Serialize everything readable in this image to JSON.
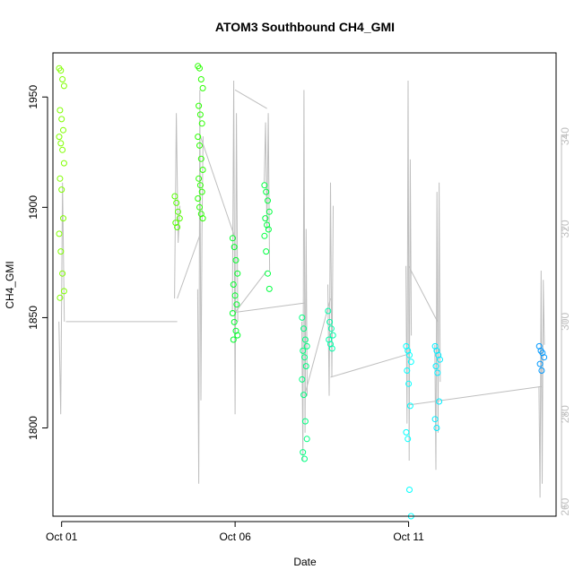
{
  "chart_data": {
    "type": "scatter",
    "title": "ATOM3 Southbound CH4_GMI",
    "xlabel": "Date",
    "ylabel": "CH4_GMI",
    "x_axis": {
      "type": "date",
      "range": [
        "2017-09-30T18:00",
        "2017-10-15T06:00"
      ],
      "ticks": [
        {
          "value": "2017-10-01",
          "label": "Oct 01"
        },
        {
          "value": "2017-10-06",
          "label": "Oct 06"
        },
        {
          "value": "2017-10-11",
          "label": "Oct 11"
        }
      ]
    },
    "y_left": {
      "range": [
        1760,
        1970
      ],
      "ticks": [
        1800,
        1850,
        1900,
        1950
      ]
    },
    "y_right": {
      "range": [
        258,
        358
      ],
      "ticks": [
        260,
        280,
        300,
        320,
        340
      ],
      "color": "#bebebe"
    },
    "colors": {
      "early": "#7fff00",
      "mid": "#00ff40",
      "late": "#00ffff",
      "latest": "#0099ff",
      "line": "#bebebe",
      "frame": "#000000"
    },
    "series": [
      {
        "axis": "left",
        "marker": "open-circle",
        "clusters": [
          {
            "x": "2017-10-01T00:00",
            "color": "#80ff00",
            "y": [
              1963,
              1962,
              1958,
              1955,
              1944,
              1940,
              1935,
              1932,
              1929,
              1926,
              1920,
              1913,
              1908,
              1895,
              1888,
              1880,
              1870,
              1862,
              1859
            ]
          },
          {
            "x": "2017-10-04T08:00",
            "color": "#55ff00",
            "y": [
              1905,
              1902,
              1898,
              1895,
              1893,
              1891
            ]
          },
          {
            "x": "2017-10-05T00:00",
            "color": "#2aff00",
            "y": [
              1964,
              1963,
              1958,
              1954,
              1946,
              1942,
              1938,
              1932,
              1928,
              1922,
              1917,
              1913,
              1910,
              1907,
              1904,
              1900,
              1897,
              1895
            ]
          },
          {
            "x": "2017-10-06T00:00",
            "color": "#00ff2a",
            "y": [
              1886,
              1882,
              1876,
              1870,
              1865,
              1860,
              1856,
              1852,
              1848,
              1844,
              1842,
              1840
            ]
          },
          {
            "x": "2017-10-06T22:00",
            "color": "#00ff40",
            "y": [
              1910,
              1907,
              1903,
              1898,
              1895,
              1892,
              1890,
              1887,
              1880,
              1870,
              1863
            ]
          },
          {
            "x": "2017-10-08T00:00",
            "color": "#00ff80",
            "y": [
              1850,
              1845,
              1840,
              1837,
              1835,
              1832,
              1828,
              1822,
              1815,
              1803,
              1795,
              1789,
              1786
            ]
          },
          {
            "x": "2017-10-08T18:00",
            "color": "#00ffaa",
            "y": [
              1853,
              1848,
              1845,
              1842,
              1840,
              1838,
              1836
            ]
          },
          {
            "x": "2017-10-11T00:00",
            "color": "#00ffff",
            "y": [
              1837,
              1835,
              1833,
              1830,
              1826,
              1820,
              1810,
              1798,
              1795,
              1772,
              1760
            ]
          },
          {
            "x": "2017-10-11T20:00",
            "color": "#00eeff",
            "y": [
              1837,
              1835,
              1833,
              1831,
              1828,
              1825,
              1812,
              1804,
              1800
            ]
          },
          {
            "x": "2017-10-14T20:00",
            "color": "#0099ff",
            "y": [
              1837,
              1835,
              1834,
              1832,
              1829,
              1826
            ]
          }
        ]
      },
      {
        "axis": "right",
        "marker": "line",
        "color": "#bebebe",
        "segments": [
          {
            "x": "2017-10-01T00:00",
            "y": [
              300,
              280,
              330,
              300
            ]
          },
          {
            "x": "2017-10-04T08:00",
            "y": [
              305,
              345,
              317,
              325
            ]
          },
          {
            "x": "2017-10-05T00:00",
            "y": [
              307,
              265,
              350,
              283,
              320,
              340
            ]
          },
          {
            "x": "2017-10-06T00:00",
            "y": [
              302,
              352,
              280,
              345,
              300
            ]
          },
          {
            "x": "2017-10-06T22:00",
            "y": [
              330,
              343,
              320,
              345,
              311
            ]
          },
          {
            "x": "2017-10-08T00:00",
            "y": [
              300,
              270,
              350,
              276,
              320,
              284
            ]
          },
          {
            "x": "2017-10-08T18:00",
            "y": [
              308,
              284,
              330,
              288,
              325
            ]
          },
          {
            "x": "2017-10-11T00:00",
            "y": [
              312,
              278,
              352,
              270,
              335,
              297
            ]
          },
          {
            "x": "2017-10-11T20:00",
            "y": [
              295,
              268,
              328,
              276,
              330,
              287
            ]
          },
          {
            "x": "2017-10-14T20:00",
            "y": [
              286,
              262,
              311,
              265,
              309,
              295
            ]
          }
        ],
        "connectors": [
          {
            "from": {
              "x": "2017-10-01T03:00",
              "y": 300
            },
            "to": {
              "x": "2017-10-04T08:00",
              "y": 300
            }
          },
          {
            "from": {
              "x": "2017-10-04T08:00",
              "y": 305
            },
            "to": {
              "x": "2017-10-05T00:00",
              "y": 319
            }
          },
          {
            "from": {
              "x": "2017-10-05T00:00",
              "y": 340
            },
            "to": {
              "x": "2017-10-06T00:00",
              "y": 318
            }
          },
          {
            "from": {
              "x": "2017-10-06T00:00",
              "y": 350
            },
            "to": {
              "x": "2017-10-06T22:00",
              "y": 346
            }
          },
          {
            "from": {
              "x": "2017-10-06T22:00",
              "y": 311
            },
            "to": {
              "x": "2017-10-06T00:00",
              "y": 302
            }
          },
          {
            "from": {
              "x": "2017-10-06T00:00",
              "y": 302
            },
            "to": {
              "x": "2017-10-08T00:00",
              "y": 304
            }
          },
          {
            "from": {
              "x": "2017-10-08T00:00",
              "y": 284
            },
            "to": {
              "x": "2017-10-08T18:00",
              "y": 305
            }
          },
          {
            "from": {
              "x": "2017-10-08T18:00",
              "y": 288
            },
            "to": {
              "x": "2017-10-11T00:00",
              "y": 293
            }
          },
          {
            "from": {
              "x": "2017-10-11T00:00",
              "y": 312
            },
            "to": {
              "x": "2017-10-11T20:00",
              "y": 300
            }
          },
          {
            "from": {
              "x": "2017-10-11T00:00",
              "y": 282
            },
            "to": {
              "x": "2017-10-14T20:00",
              "y": 286
            }
          }
        ]
      }
    ],
    "grid": false,
    "legend": "none"
  }
}
